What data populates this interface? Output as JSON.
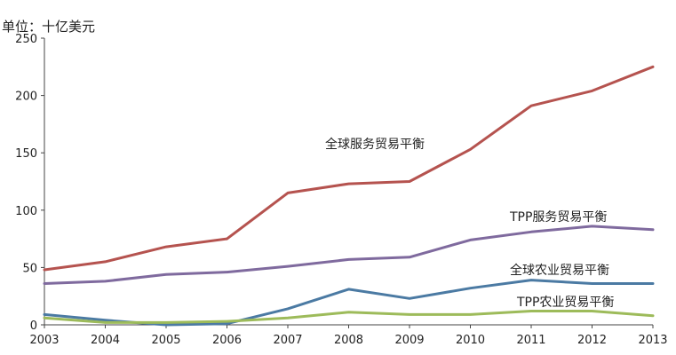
{
  "chart_data": {
    "type": "line",
    "unit_label": "单位：十亿美元",
    "x": [
      2003,
      2004,
      2005,
      2006,
      2007,
      2008,
      2009,
      2010,
      2011,
      2012,
      2013
    ],
    "ylim": [
      0,
      250
    ],
    "yticks": [
      0,
      50,
      100,
      150,
      200,
      250
    ],
    "grid": false,
    "series": [
      {
        "name": "全球服务贸易平衡",
        "color": "#b5534f",
        "values": [
          48,
          55,
          68,
          75,
          115,
          123,
          125,
          153,
          191,
          204,
          225
        ]
      },
      {
        "name": "TPP服务贸易平衡",
        "color": "#7f6a9e",
        "values": [
          36,
          38,
          44,
          46,
          51,
          57,
          59,
          74,
          81,
          86,
          83
        ]
      },
      {
        "name": "全球农业贸易平衡",
        "color": "#4b7aa3",
        "values": [
          9,
          4,
          0,
          1,
          14,
          31,
          23,
          32,
          39,
          36,
          36
        ]
      },
      {
        "name": "TPP农业贸易平衡",
        "color": "#9dbb5a",
        "values": [
          6,
          2,
          2,
          3,
          6,
          11,
          9,
          9,
          12,
          12,
          8
        ]
      }
    ]
  }
}
